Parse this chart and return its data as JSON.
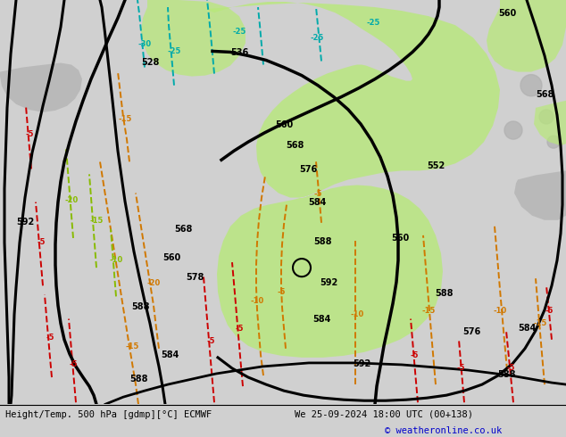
{
  "title_left": "Height/Temp. 500 hPa [gdmp][°C] ECMWF",
  "title_right": "We 25-09-2024 18:00 UTC (00+138)",
  "copyright": "© weatheronline.co.uk",
  "bg_color": "#d0d0d0",
  "map_bg": "#dcdcdc",
  "green_fill": "#b8e87a",
  "figsize": [
    6.34,
    4.9
  ],
  "dpi": 100
}
